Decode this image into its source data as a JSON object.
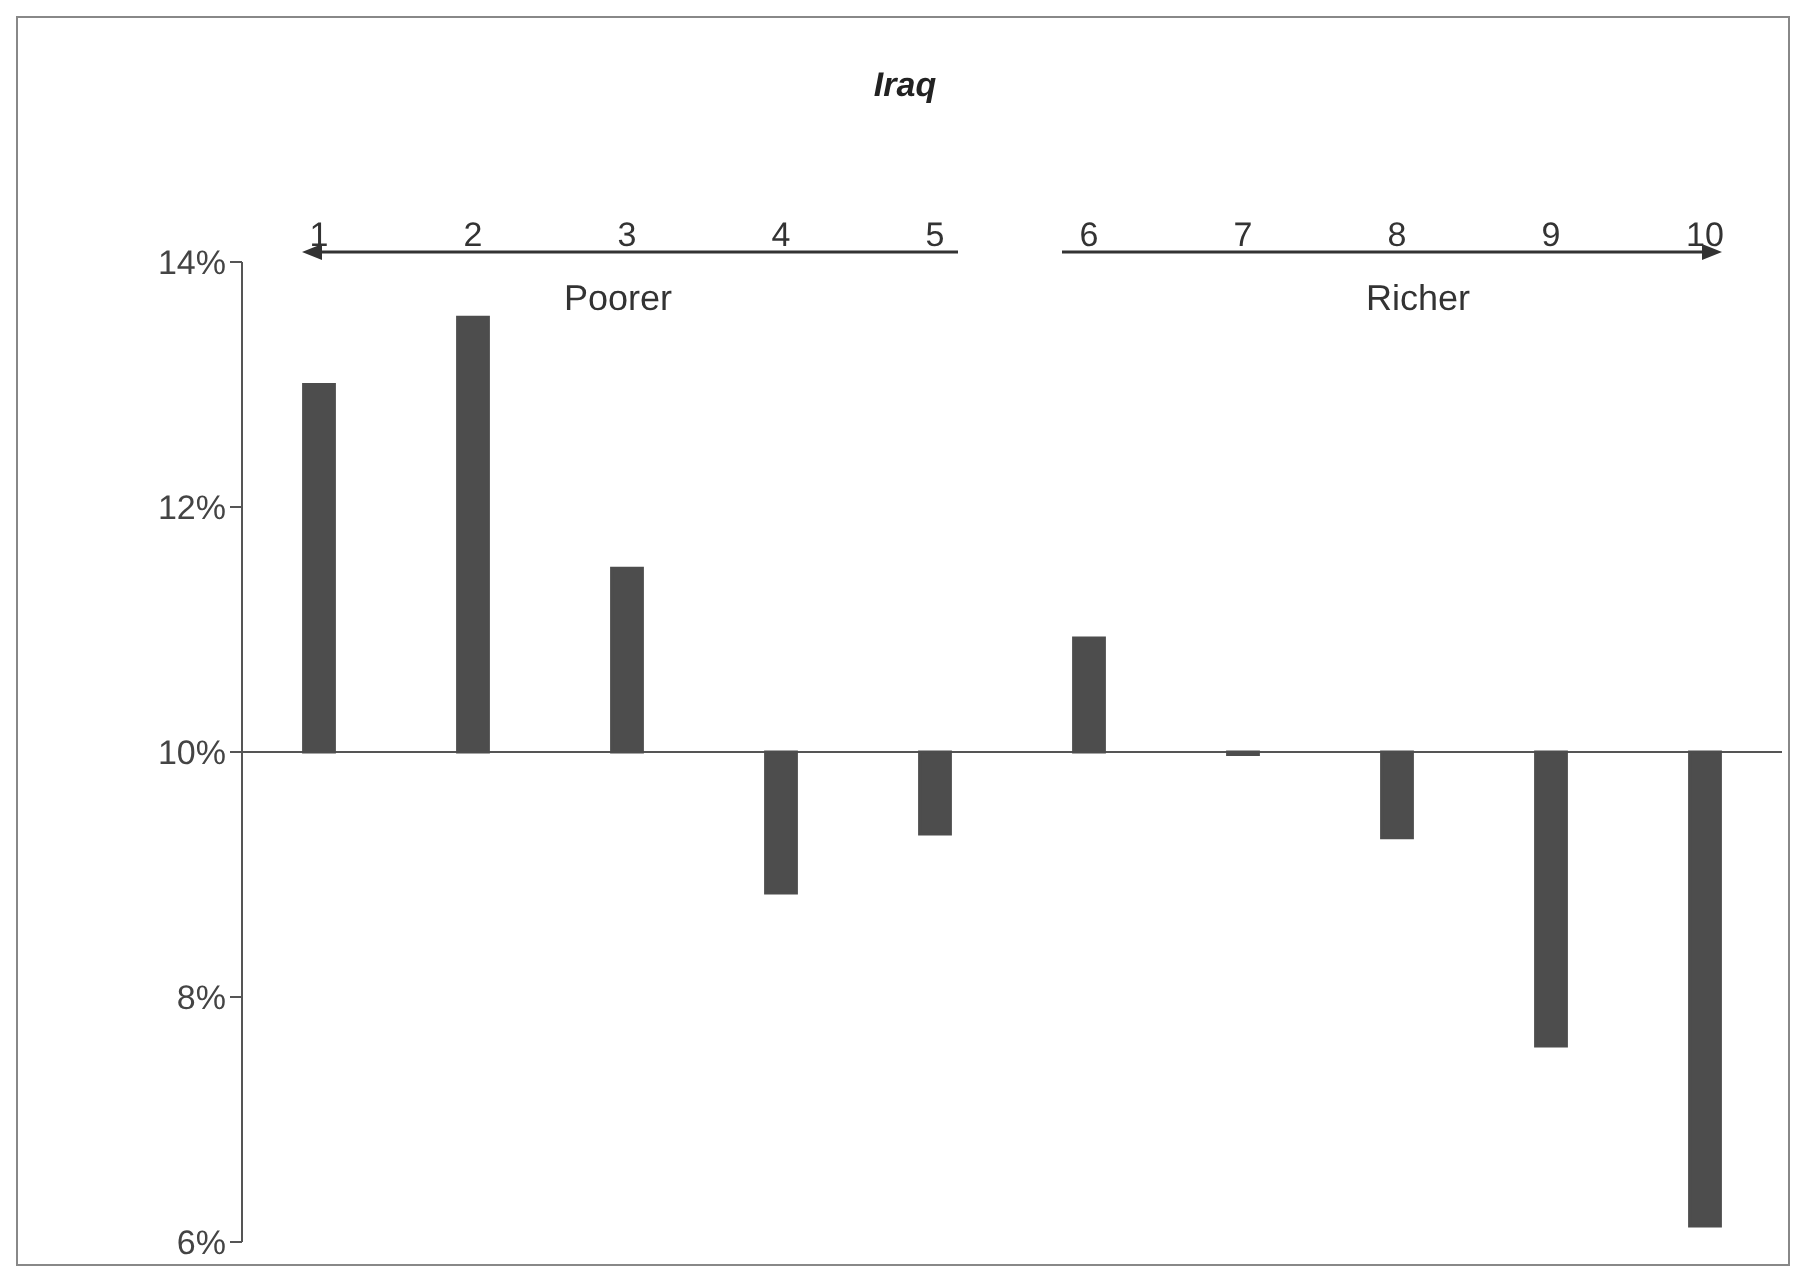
{
  "chart_data": {
    "type": "bar",
    "title": "Iraq",
    "categories": [
      "1",
      "2",
      "3",
      "4",
      "5",
      "6",
      "7",
      "8",
      "9",
      "10"
    ],
    "base": [
      10,
      10,
      10,
      10,
      10,
      10,
      10,
      10,
      10,
      10
    ],
    "values": [
      3.0,
      3.55,
      1.5,
      -1.15,
      -0.67,
      0.93,
      -0.02,
      -0.7,
      -2.4,
      -3.87
    ],
    "color": "#4d4d4d",
    "ylim": [
      6,
      14
    ],
    "yticks": [
      {
        "value": 6,
        "label": "6%"
      },
      {
        "value": 8,
        "label": "8%"
      },
      {
        "value": 10,
        "label": "10%"
      },
      {
        "value": 12,
        "label": "12%"
      },
      {
        "value": 14,
        "label": "14%"
      }
    ],
    "annotations": [
      "Poorer",
      "Richer"
    ]
  }
}
